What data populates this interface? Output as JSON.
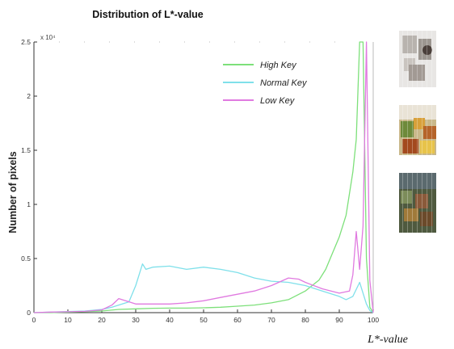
{
  "chart_data": {
    "type": "line",
    "title": "Distribution of L*-value",
    "xlabel": "L*-value",
    "ylabel": "Number of pixels",
    "xlim": [
      0,
      100
    ],
    "ylim": [
      0,
      25000
    ],
    "x_ticks": [
      "0",
      "10",
      "20",
      "30",
      "40",
      "50",
      "60",
      "70",
      "80",
      "90",
      "100"
    ],
    "y_ticks": [
      "0",
      "0.5",
      "1",
      "1.5",
      "2",
      "2.5"
    ],
    "y_exponent": "x 10⁴",
    "grid": false,
    "legend_position": "top-right",
    "series": [
      {
        "name": "High Key",
        "color": "#7de07a",
        "x": [
          0,
          5,
          10,
          15,
          20,
          25,
          30,
          35,
          40,
          45,
          50,
          55,
          60,
          65,
          70,
          75,
          80,
          84,
          86,
          88,
          90,
          92,
          94,
          95,
          96,
          97,
          98,
          99,
          100
        ],
        "y": [
          0,
          0,
          50,
          100,
          150,
          300,
          350,
          400,
          420,
          420,
          450,
          500,
          600,
          700,
          900,
          1200,
          2000,
          3000,
          4000,
          5500,
          7000,
          9000,
          13000,
          16000,
          25000,
          25000,
          5000,
          500,
          0
        ]
      },
      {
        "name": "Normal Key",
        "color": "#7fe0ea",
        "x": [
          0,
          5,
          10,
          15,
          20,
          23,
          25,
          28,
          30,
          31,
          32,
          33,
          35,
          40,
          45,
          50,
          55,
          60,
          65,
          70,
          75,
          80,
          85,
          90,
          92,
          94,
          96,
          97,
          98,
          99,
          100
        ],
        "y": [
          0,
          50,
          100,
          150,
          300,
          500,
          700,
          1000,
          2500,
          3500,
          4500,
          4000,
          4200,
          4300,
          4000,
          4200,
          4000,
          3700,
          3200,
          2900,
          2800,
          2500,
          2000,
          1500,
          1200,
          1500,
          2800,
          1800,
          800,
          200,
          0
        ]
      },
      {
        "name": "Low Key",
        "color": "#e07ae0",
        "x": [
          0,
          5,
          10,
          15,
          20,
          23,
          25,
          27,
          30,
          35,
          40,
          45,
          50,
          55,
          60,
          65,
          70,
          75,
          78,
          80,
          85,
          90,
          93,
          94,
          95,
          96,
          97,
          98,
          99,
          100
        ],
        "y": [
          0,
          50,
          80,
          120,
          250,
          700,
          1300,
          1100,
          800,
          800,
          800,
          900,
          1100,
          1400,
          1700,
          2000,
          2500,
          3200,
          3100,
          2800,
          2200,
          1800,
          2000,
          3500,
          7500,
          4000,
          8000,
          25000,
          3000,
          0
        ]
      }
    ]
  },
  "thumbnails": [
    {
      "name": "high-key-thumbnail",
      "label": "High Key"
    },
    {
      "name": "normal-key-thumbnail",
      "label": "Normal Key"
    },
    {
      "name": "low-key-thumbnail",
      "label": "Low Key"
    }
  ]
}
